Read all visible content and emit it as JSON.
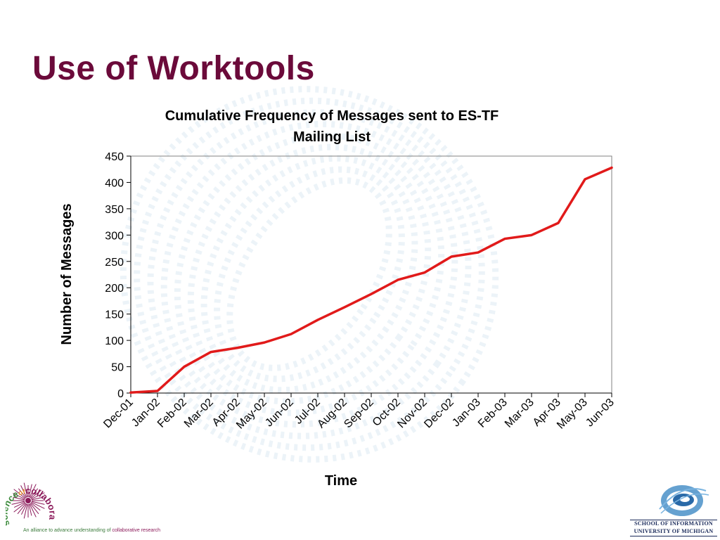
{
  "slide": {
    "title": "Use of Worktools"
  },
  "chart_data": {
    "type": "line",
    "title_lines": [
      "Cumulative Frequency of Messages sent to ES-TF",
      "Mailing List"
    ],
    "xlabel": "Time",
    "ylabel": "Number of Messages",
    "categories": [
      "Dec-01",
      "Jan-02",
      "Feb-02",
      "Mar-02",
      "Apr-02",
      "May-02",
      "Jun-02",
      "Jul-02",
      "Aug-02",
      "Sep-02",
      "Oct-02",
      "Nov-02",
      "Dec-02",
      "Jan-03",
      "Feb-03",
      "Mar-03",
      "Apr-03",
      "May-03",
      "Jun-03"
    ],
    "series": [
      {
        "values": [
          1,
          4,
          50,
          78,
          86,
          96,
          112,
          139,
          163,
          188,
          215,
          229,
          259,
          267,
          293,
          300,
          323,
          406,
          428
        ],
        "color": "#e11a1a"
      }
    ],
    "ylim": [
      0,
      450
    ],
    "yticks": [
      0,
      50,
      100,
      150,
      200,
      250,
      300,
      350,
      400,
      450
    ],
    "grid": false,
    "legend": "none"
  },
  "branding": {
    "left_logo": {
      "wordmark_prefix": "science",
      "wordmark_of": "of",
      "wordmark_suffix": "collaboratories",
      "tagline_start": "An alliance to advance understanding of ",
      "tagline_accent": "collaborative research",
      "icon": "starburst-logo-icon"
    },
    "right_logo": {
      "line1": "SCHOOL OF INFORMATION",
      "line2": "UNIVERSITY OF MICHIGAN",
      "icon": "swirl-globe-icon"
    }
  },
  "colors": {
    "title": "#6b0a3a",
    "series_line": "#e11a1a",
    "watermark": "#dce9f3"
  }
}
